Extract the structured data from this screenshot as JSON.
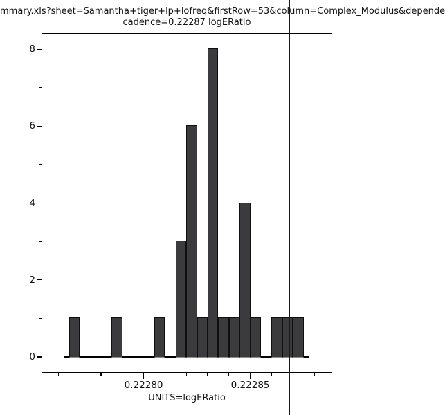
{
  "title": {
    "line1": "mmary.xls?sheet=Samantha+tiger+lp+lofreq&firstRow=53&column=Complex_Modulus&depende",
    "line2": "cadence=0.22287 logERatio"
  },
  "x_axis": {
    "label": "UNITS=logERatio",
    "major_ticks": [
      {
        "label": "0.22280",
        "value": 0.2228
      },
      {
        "label": "0.22285",
        "value": 0.22285
      }
    ],
    "tick_values": [
      0.22276,
      0.22277,
      0.22278,
      0.22279,
      0.2228,
      0.22281,
      0.22282,
      0.22283,
      0.22284,
      0.22285,
      0.22286,
      0.22287,
      0.22288
    ]
  },
  "y_axis": {
    "major_ticks": [
      {
        "label": "0",
        "value": 0
      },
      {
        "label": "2",
        "value": 2
      },
      {
        "label": "4",
        "value": 4
      },
      {
        "label": "6",
        "value": 6
      },
      {
        "label": "8",
        "value": 8
      }
    ],
    "minor_tick_values": [
      1,
      3,
      5,
      7
    ]
  },
  "marker_line": {
    "value": 0.22287
  },
  "colors": {
    "bar_fill": "#3b3b3d",
    "bar_outline": "#0f0f0f",
    "axis": "#000000",
    "background": "#ffffff"
  },
  "chart_data": {
    "type": "bar",
    "subtype": "histogram",
    "title": "cadence=0.22287 logERatio",
    "xlabel": "UNITS=logERatio",
    "ylabel": "",
    "bin_width": 5e-06,
    "bins": [
      {
        "start": 0.222765,
        "end": 0.22277,
        "count": 1
      },
      {
        "start": 0.222785,
        "end": 0.22279,
        "count": 1
      },
      {
        "start": 0.222805,
        "end": 0.22281,
        "count": 1
      },
      {
        "start": 0.222815,
        "end": 0.22282,
        "count": 3
      },
      {
        "start": 0.22282,
        "end": 0.222825,
        "count": 6
      },
      {
        "start": 0.222825,
        "end": 0.22283,
        "count": 1
      },
      {
        "start": 0.22283,
        "end": 0.222835,
        "count": 8
      },
      {
        "start": 0.222835,
        "end": 0.22284,
        "count": 1
      },
      {
        "start": 0.22284,
        "end": 0.222845,
        "count": 1
      },
      {
        "start": 0.222845,
        "end": 0.22285,
        "count": 4
      },
      {
        "start": 0.22285,
        "end": 0.222855,
        "count": 1
      },
      {
        "start": 0.222855,
        "end": 0.22286,
        "count": 0
      },
      {
        "start": 0.22286,
        "end": 0.222865,
        "count": 1
      },
      {
        "start": 0.222865,
        "end": 0.22287,
        "count": 1
      },
      {
        "start": 0.22287,
        "end": 0.222875,
        "count": 1
      }
    ],
    "xlim": [
      0.222752,
      0.222889
    ],
    "ylim": [
      -0.42,
      8.42
    ],
    "vline_x": 0.22287,
    "grid": false,
    "legend_position": "none"
  }
}
